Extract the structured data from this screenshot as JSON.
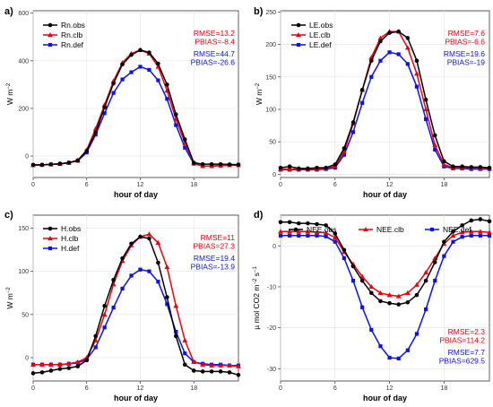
{
  "chart_data": [
    {
      "type": "line",
      "tag": "a)",
      "xlabel": "hour of day",
      "ylabel_main": "W m",
      "ylabel_sup": "−2",
      "xlim": [
        0,
        23
      ],
      "ylim": [
        -90,
        610
      ],
      "xticks": [
        0,
        6,
        12,
        18
      ],
      "yticks": [
        0,
        200,
        400,
        600
      ],
      "x": [
        0,
        1,
        2,
        3,
        4,
        5,
        6,
        7,
        8,
        9,
        10,
        11,
        12,
        13,
        14,
        15,
        16,
        17,
        18,
        19,
        20,
        21,
        22,
        23
      ],
      "series": [
        {
          "name": "Rn.obs",
          "color": "#000000",
          "marker": "circle",
          "values": [
            -37,
            -37,
            -35,
            -32,
            -28,
            -18,
            22,
            100,
            205,
            305,
            385,
            425,
            445,
            435,
            388,
            300,
            175,
            70,
            -28,
            -34,
            -34,
            -34,
            -35,
            -36
          ]
        },
        {
          "name": "Rn.clb",
          "color": "#e8000b",
          "marker": "triangle",
          "values": [
            -38,
            -37,
            -35,
            -33,
            -28,
            -18,
            25,
            115,
            215,
            315,
            392,
            430,
            445,
            430,
            375,
            275,
            155,
            55,
            -30,
            -42,
            -42,
            -40,
            -38,
            -38
          ]
        },
        {
          "name": "Rn.def",
          "color": "#0a12e8",
          "marker": "square",
          "values": [
            -38,
            -37,
            -35,
            -33,
            -28,
            -20,
            15,
            90,
            180,
            265,
            322,
            352,
            375,
            362,
            318,
            240,
            130,
            35,
            -32,
            -42,
            -42,
            -40,
            -38,
            -37
          ]
        }
      ],
      "stats": [
        {
          "color": "#e8000b",
          "lines": [
            "RMSE=13.2",
            "PBIAS=-8.4"
          ]
        },
        {
          "color": "#0a12e8",
          "lines": [
            "RMSE=44.7",
            "PBIAS=-26.6"
          ]
        }
      ]
    },
    {
      "type": "line",
      "tag": "b)",
      "xlabel": "hour of day",
      "ylabel_main": "W m",
      "ylabel_sup": "−2",
      "xlim": [
        0,
        23
      ],
      "ylim": [
        -5,
        252
      ],
      "xticks": [
        0,
        6,
        12,
        18
      ],
      "yticks": [
        0,
        50,
        100,
        150,
        200,
        250
      ],
      "x": [
        0,
        1,
        2,
        3,
        4,
        5,
        6,
        7,
        8,
        9,
        10,
        11,
        12,
        13,
        14,
        15,
        16,
        17,
        18,
        19,
        20,
        21,
        22,
        23
      ],
      "series": [
        {
          "name": "LE.obs",
          "color": "#000000",
          "marker": "circle",
          "values": [
            10,
            12,
            9,
            9,
            10,
            10,
            15,
            40,
            80,
            130,
            175,
            205,
            218,
            220,
            210,
            175,
            115,
            60,
            20,
            12,
            12,
            11,
            11,
            10
          ]
        },
        {
          "name": "LE.clb",
          "color": "#e8000b",
          "marker": "triangle",
          "values": [
            8,
            8,
            8,
            8,
            8,
            9,
            12,
            35,
            78,
            130,
            180,
            210,
            220,
            220,
            195,
            155,
            100,
            45,
            15,
            10,
            10,
            10,
            9,
            9
          ]
        },
        {
          "name": "LE.def",
          "color": "#0a12e8",
          "marker": "square",
          "values": [
            7,
            7,
            7,
            7,
            7,
            8,
            10,
            30,
            65,
            110,
            150,
            175,
            188,
            185,
            170,
            135,
            85,
            38,
            12,
            9,
            9,
            8,
            8,
            8
          ]
        }
      ],
      "stats": [
        {
          "color": "#e8000b",
          "lines": [
            "RMSE=7.6",
            "PBIAS=-6.6"
          ]
        },
        {
          "color": "#0a12e8",
          "lines": [
            "RMSE=19.6",
            "PBIAS=-19"
          ]
        }
      ]
    },
    {
      "type": "line",
      "tag": "c)",
      "xlabel": "hour of day",
      "ylabel_main": "W m",
      "ylabel_sup": "−2",
      "xlim": [
        0,
        23
      ],
      "ylim": [
        -27,
        165
      ],
      "xticks": [
        0,
        6,
        12,
        18
      ],
      "yticks": [
        0,
        50,
        100,
        150
      ],
      "x": [
        0,
        1,
        2,
        3,
        4,
        5,
        6,
        7,
        8,
        9,
        10,
        11,
        12,
        13,
        14,
        15,
        16,
        17,
        18,
        19,
        20,
        21,
        22,
        23
      ],
      "series": [
        {
          "name": "H.obs",
          "color": "#000000",
          "marker": "circle",
          "values": [
            -18,
            -17,
            -15,
            -13,
            -12,
            -10,
            -3,
            25,
            60,
            90,
            115,
            132,
            140,
            138,
            110,
            70,
            25,
            -8,
            -15,
            -16,
            -16,
            -16,
            -17,
            -20
          ]
        },
        {
          "name": "H.clb",
          "color": "#e8000b",
          "marker": "triangle",
          "values": [
            -8,
            -8,
            -8,
            -8,
            -7,
            -5,
            0,
            20,
            50,
            85,
            112,
            130,
            140,
            143,
            133,
            105,
            60,
            20,
            -5,
            -8,
            -9,
            -9,
            -9,
            -10
          ]
        },
        {
          "name": "H.def",
          "color": "#0a12e8",
          "marker": "square",
          "values": [
            -8,
            -8,
            -8,
            -8,
            -7,
            -6,
            -2,
            12,
            35,
            58,
            80,
            95,
            102,
            100,
            88,
            62,
            30,
            5,
            -5,
            -7,
            -8,
            -8,
            -9,
            -9
          ]
        }
      ],
      "stats": [
        {
          "color": "#e8000b",
          "lines": [
            "RMSE=11",
            "PBIAS=27.3"
          ]
        },
        {
          "color": "#0a12e8",
          "lines": [
            "RMSE=19.4",
            "PBIAS=-13.9"
          ]
        }
      ]
    },
    {
      "type": "line",
      "tag": "d)",
      "xlabel": "hour of day",
      "ylabel_main": "µ mol CO2 m",
      "ylabel_sup": "−2",
      "ylabel_tail": " s",
      "ylabel_sup2": "−1",
      "xlim": [
        0,
        23
      ],
      "ylim": [
        -33,
        7.5
      ],
      "xticks": [
        0,
        6,
        12,
        18
      ],
      "yticks": [
        0,
        -10,
        -20,
        -30
      ],
      "x": [
        0,
        1,
        2,
        3,
        4,
        5,
        6,
        7,
        8,
        9,
        10,
        11,
        12,
        13,
        14,
        15,
        16,
        17,
        18,
        19,
        20,
        21,
        22,
        23
      ],
      "series": [
        {
          "name": "NEE.obs",
          "color": "#000000",
          "marker": "circle",
          "values": [
            5.8,
            5.8,
            5.5,
            5.5,
            5.3,
            5,
            3,
            -1,
            -5,
            -8.5,
            -11.5,
            -13.5,
            -14,
            -14.3,
            -13.8,
            -12,
            -8.5,
            -4,
            1,
            3.5,
            5,
            6.2,
            6.5,
            6
          ]
        },
        {
          "name": "NEE.clb",
          "color": "#e8000b",
          "marker": "triangle",
          "values": [
            3.5,
            3.5,
            3.5,
            3.5,
            3.3,
            3.2,
            2,
            -1.5,
            -4.5,
            -7.5,
            -10,
            -11.5,
            -12,
            -12.3,
            -11.5,
            -9.5,
            -6.5,
            -3,
            0.5,
            2.5,
            3.3,
            3.5,
            3.5,
            3.3
          ]
        },
        {
          "name": "NEE.def",
          "color": "#0a12e8",
          "marker": "square",
          "values": [
            2.5,
            2.5,
            2.5,
            2.5,
            2.5,
            2.3,
            1,
            -3,
            -8.5,
            -15,
            -20.5,
            -24.5,
            -27.3,
            -27.5,
            -25.5,
            -21.5,
            -15.5,
            -8.5,
            -2.5,
            1,
            2.2,
            2.5,
            2.5,
            2.5
          ]
        }
      ],
      "stats": [
        {
          "color": "#e8000b",
          "lines": [
            "RMSE=2.3",
            "PBIAS=114.2"
          ]
        },
        {
          "color": "#0a12e8",
          "lines": [
            "RMSE=7.7",
            "PBIAS=629.5"
          ]
        }
      ]
    }
  ]
}
